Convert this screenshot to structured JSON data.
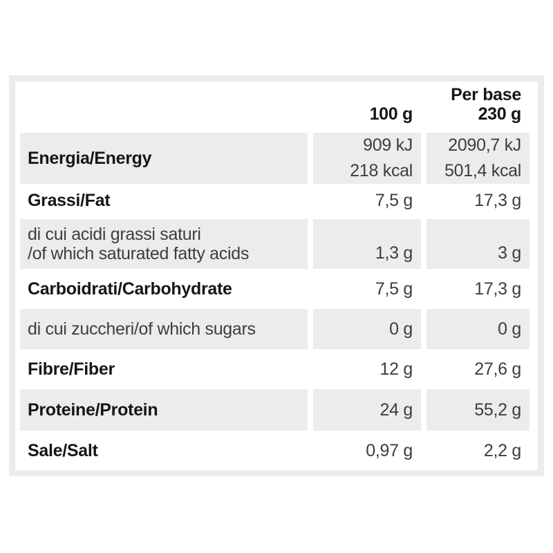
{
  "colors": {
    "table_border": "#ececec",
    "row_shade": "#ececec",
    "label_text": "#161615",
    "value_text": "#3d3d3c",
    "background": "#ffffff"
  },
  "table": {
    "header": {
      "col_100g": "100 g",
      "col_base_line1": "Per base",
      "col_base_line2": "230 g"
    },
    "rows": [
      {
        "label": "Energia/Energy",
        "per_100g": [
          "909 kJ",
          "218 kcal"
        ],
        "per_base": [
          "2090,7 kJ",
          "501,4 kcal"
        ]
      },
      {
        "label": "Grassi/Fat",
        "per_100g": [
          "7,5 g"
        ],
        "per_base": [
          "17,3 g"
        ]
      },
      {
        "label": "di cui acidi grassi saturi",
        "label_line2": "/of which saturated fatty acids",
        "per_100g": [
          "1,3 g"
        ],
        "per_base": [
          "3 g"
        ]
      },
      {
        "label": "Carboidrati/Carbohydrate",
        "per_100g": [
          "7,5 g"
        ],
        "per_base": [
          "17,3 g"
        ]
      },
      {
        "label": "di cui zuccheri/of which sugars",
        "per_100g": [
          "0 g"
        ],
        "per_base": [
          "0 g"
        ]
      },
      {
        "label": "Fibre/Fiber",
        "per_100g": [
          "12 g"
        ],
        "per_base": [
          "27,6 g"
        ]
      },
      {
        "label": "Proteine/Protein",
        "per_100g": [
          "24 g"
        ],
        "per_base": [
          "55,2 g"
        ]
      },
      {
        "label": "Sale/Salt",
        "per_100g": [
          "0,97 g"
        ],
        "per_base": [
          "2,2 g"
        ]
      }
    ]
  }
}
